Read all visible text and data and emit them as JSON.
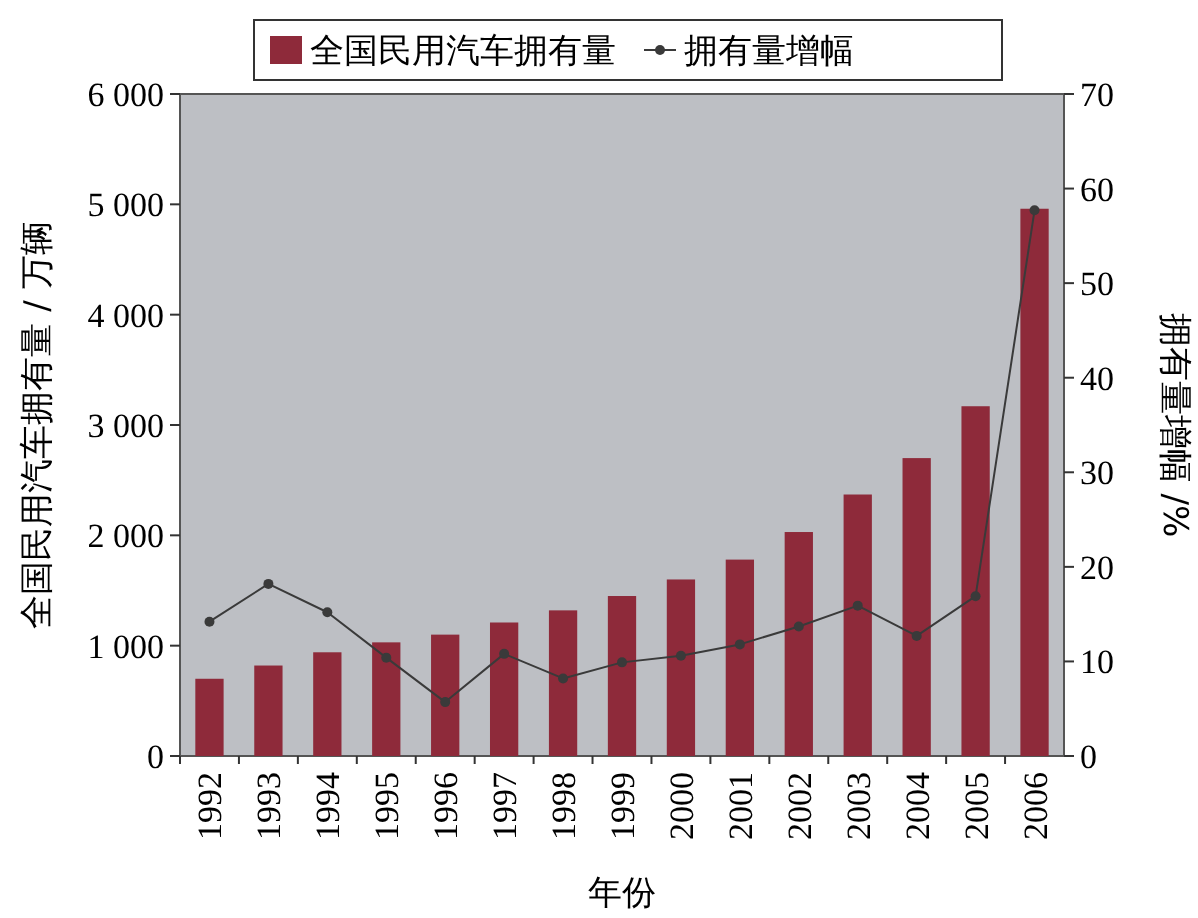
{
  "chart_data": {
    "type": "bar",
    "xlabel": "年份",
    "ylabel": "全国民用汽车拥有量 / 万辆",
    "y2label": "拥有量增幅 /%",
    "categories": [
      "1992",
      "1993",
      "1994",
      "1995",
      "1996",
      "1997",
      "1998",
      "1999",
      "2000",
      "2001",
      "2002",
      "2003",
      "2004",
      "2005",
      "2006"
    ],
    "series": [
      {
        "name": "全国民用汽车拥有量",
        "color": "#8e2a3a",
        "values": [
          700,
          820,
          940,
          1030,
          1100,
          1210,
          1320,
          1450,
          1600,
          1780,
          2030,
          2370,
          2700,
          3170,
          4960
        ]
      },
      {
        "name": "拥有量增幅",
        "color": "#3a3a3a",
        "type": "line",
        "axis": "y2",
        "values": [
          14.2,
          18.2,
          15.2,
          10.4,
          5.7,
          10.8,
          8.2,
          9.9,
          10.6,
          11.8,
          13.7,
          15.9,
          12.7,
          16.9,
          57.7
        ]
      }
    ],
    "ylim": [
      0,
      6000
    ],
    "yticks": [
      0,
      {
        "value": 1000,
        "label": "1 000"
      },
      {
        "value": 2000,
        "label": "2 000"
      },
      {
        "value": 3000,
        "label": "3 000"
      },
      {
        "value": 4000,
        "label": "4 000"
      },
      {
        "value": 5000,
        "label": "5 000"
      },
      {
        "value": 6000,
        "label": "6 000"
      }
    ],
    "y2lim": [
      0,
      70
    ],
    "y2ticks": [
      0,
      10,
      20,
      30,
      40,
      50,
      60,
      70
    ],
    "legend": "top",
    "marker": "circle"
  }
}
